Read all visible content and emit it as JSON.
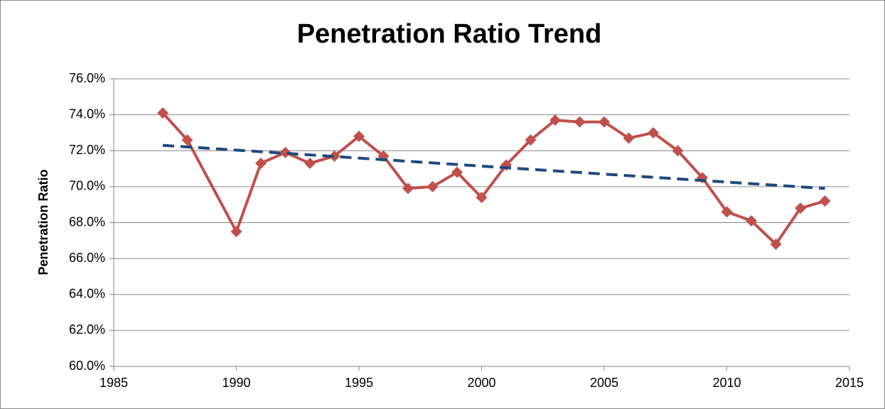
{
  "chart_data": {
    "type": "line",
    "title": "Penetration Ratio Trend",
    "y_label": "Penetration Ratio",
    "x": [
      1987,
      1988,
      1990,
      1991,
      1992,
      1993,
      1994,
      1995,
      1996,
      1997,
      1998,
      1999,
      2000,
      2001,
      2002,
      2003,
      2004,
      2005,
      2006,
      2007,
      2008,
      2009,
      2010,
      2011,
      2012,
      2013,
      2014
    ],
    "series": [
      {
        "color": "#c0504d",
        "marker": "diamond",
        "values": [
          74.1,
          72.6,
          67.5,
          71.3,
          71.9,
          71.3,
          71.7,
          72.8,
          71.7,
          69.9,
          70.0,
          70.8,
          69.4,
          71.2,
          72.6,
          73.7,
          73.6,
          73.6,
          72.7,
          73.0,
          72.0,
          70.5,
          68.6,
          68.1,
          66.8,
          68.8,
          69.2
        ]
      },
      {
        "color": "#1f497d",
        "dashed": true,
        "x": [
          1987,
          2014
        ],
        "values": [
          72.3,
          69.9
        ]
      }
    ],
    "xlim": [
      1985,
      2015
    ],
    "xticks": [
      1985,
      1990,
      1995,
      2000,
      2005,
      2010,
      2015
    ],
    "ylim": [
      60,
      76
    ],
    "yticks": [
      {
        "value": 60,
        "label": "60.0%"
      },
      {
        "value": 62,
        "label": "62.0%"
      },
      {
        "value": 64,
        "label": "64.0%"
      },
      {
        "value": 66,
        "label": "66.0%"
      },
      {
        "value": 68,
        "label": "68.0%"
      },
      {
        "value": 70,
        "label": "70.0%"
      },
      {
        "value": 72,
        "label": "72.0%"
      },
      {
        "value": 74,
        "label": "74.0%"
      },
      {
        "value": 76,
        "label": "76.0%"
      }
    ],
    "grid": true
  }
}
